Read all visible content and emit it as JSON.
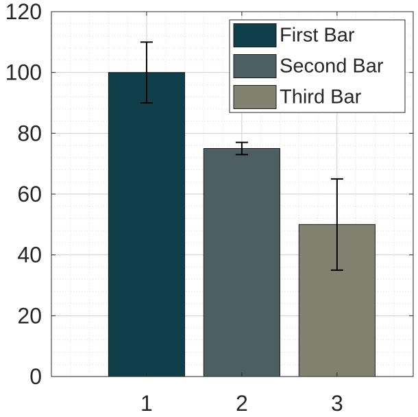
{
  "chart_data": {
    "type": "bar",
    "categories": [
      "1",
      "2",
      "3"
    ],
    "values": [
      100,
      75,
      50
    ],
    "error_bars": [
      {
        "lower": 90,
        "upper": 110
      },
      {
        "lower": 73,
        "upper": 77
      },
      {
        "lower": 35,
        "upper": 65
      }
    ],
    "bar_colors": [
      "#0f3f4a",
      "#4d5f63",
      "#80826f"
    ],
    "series": [
      {
        "name": "First Bar",
        "color": "#0f3f4a"
      },
      {
        "name": "Second Bar",
        "color": "#4d5f63"
      },
      {
        "name": "Third Bar",
        "color": "#80826f"
      }
    ],
    "yticks": [
      "0",
      "20",
      "40",
      "60",
      "80",
      "100",
      "120"
    ],
    "ylim": [
      0,
      120
    ],
    "xlim": [
      0,
      3.8
    ],
    "grid": true,
    "minor_grid": true,
    "legend_position": "top-right",
    "title": "",
    "xlabel": "",
    "ylabel": ""
  }
}
